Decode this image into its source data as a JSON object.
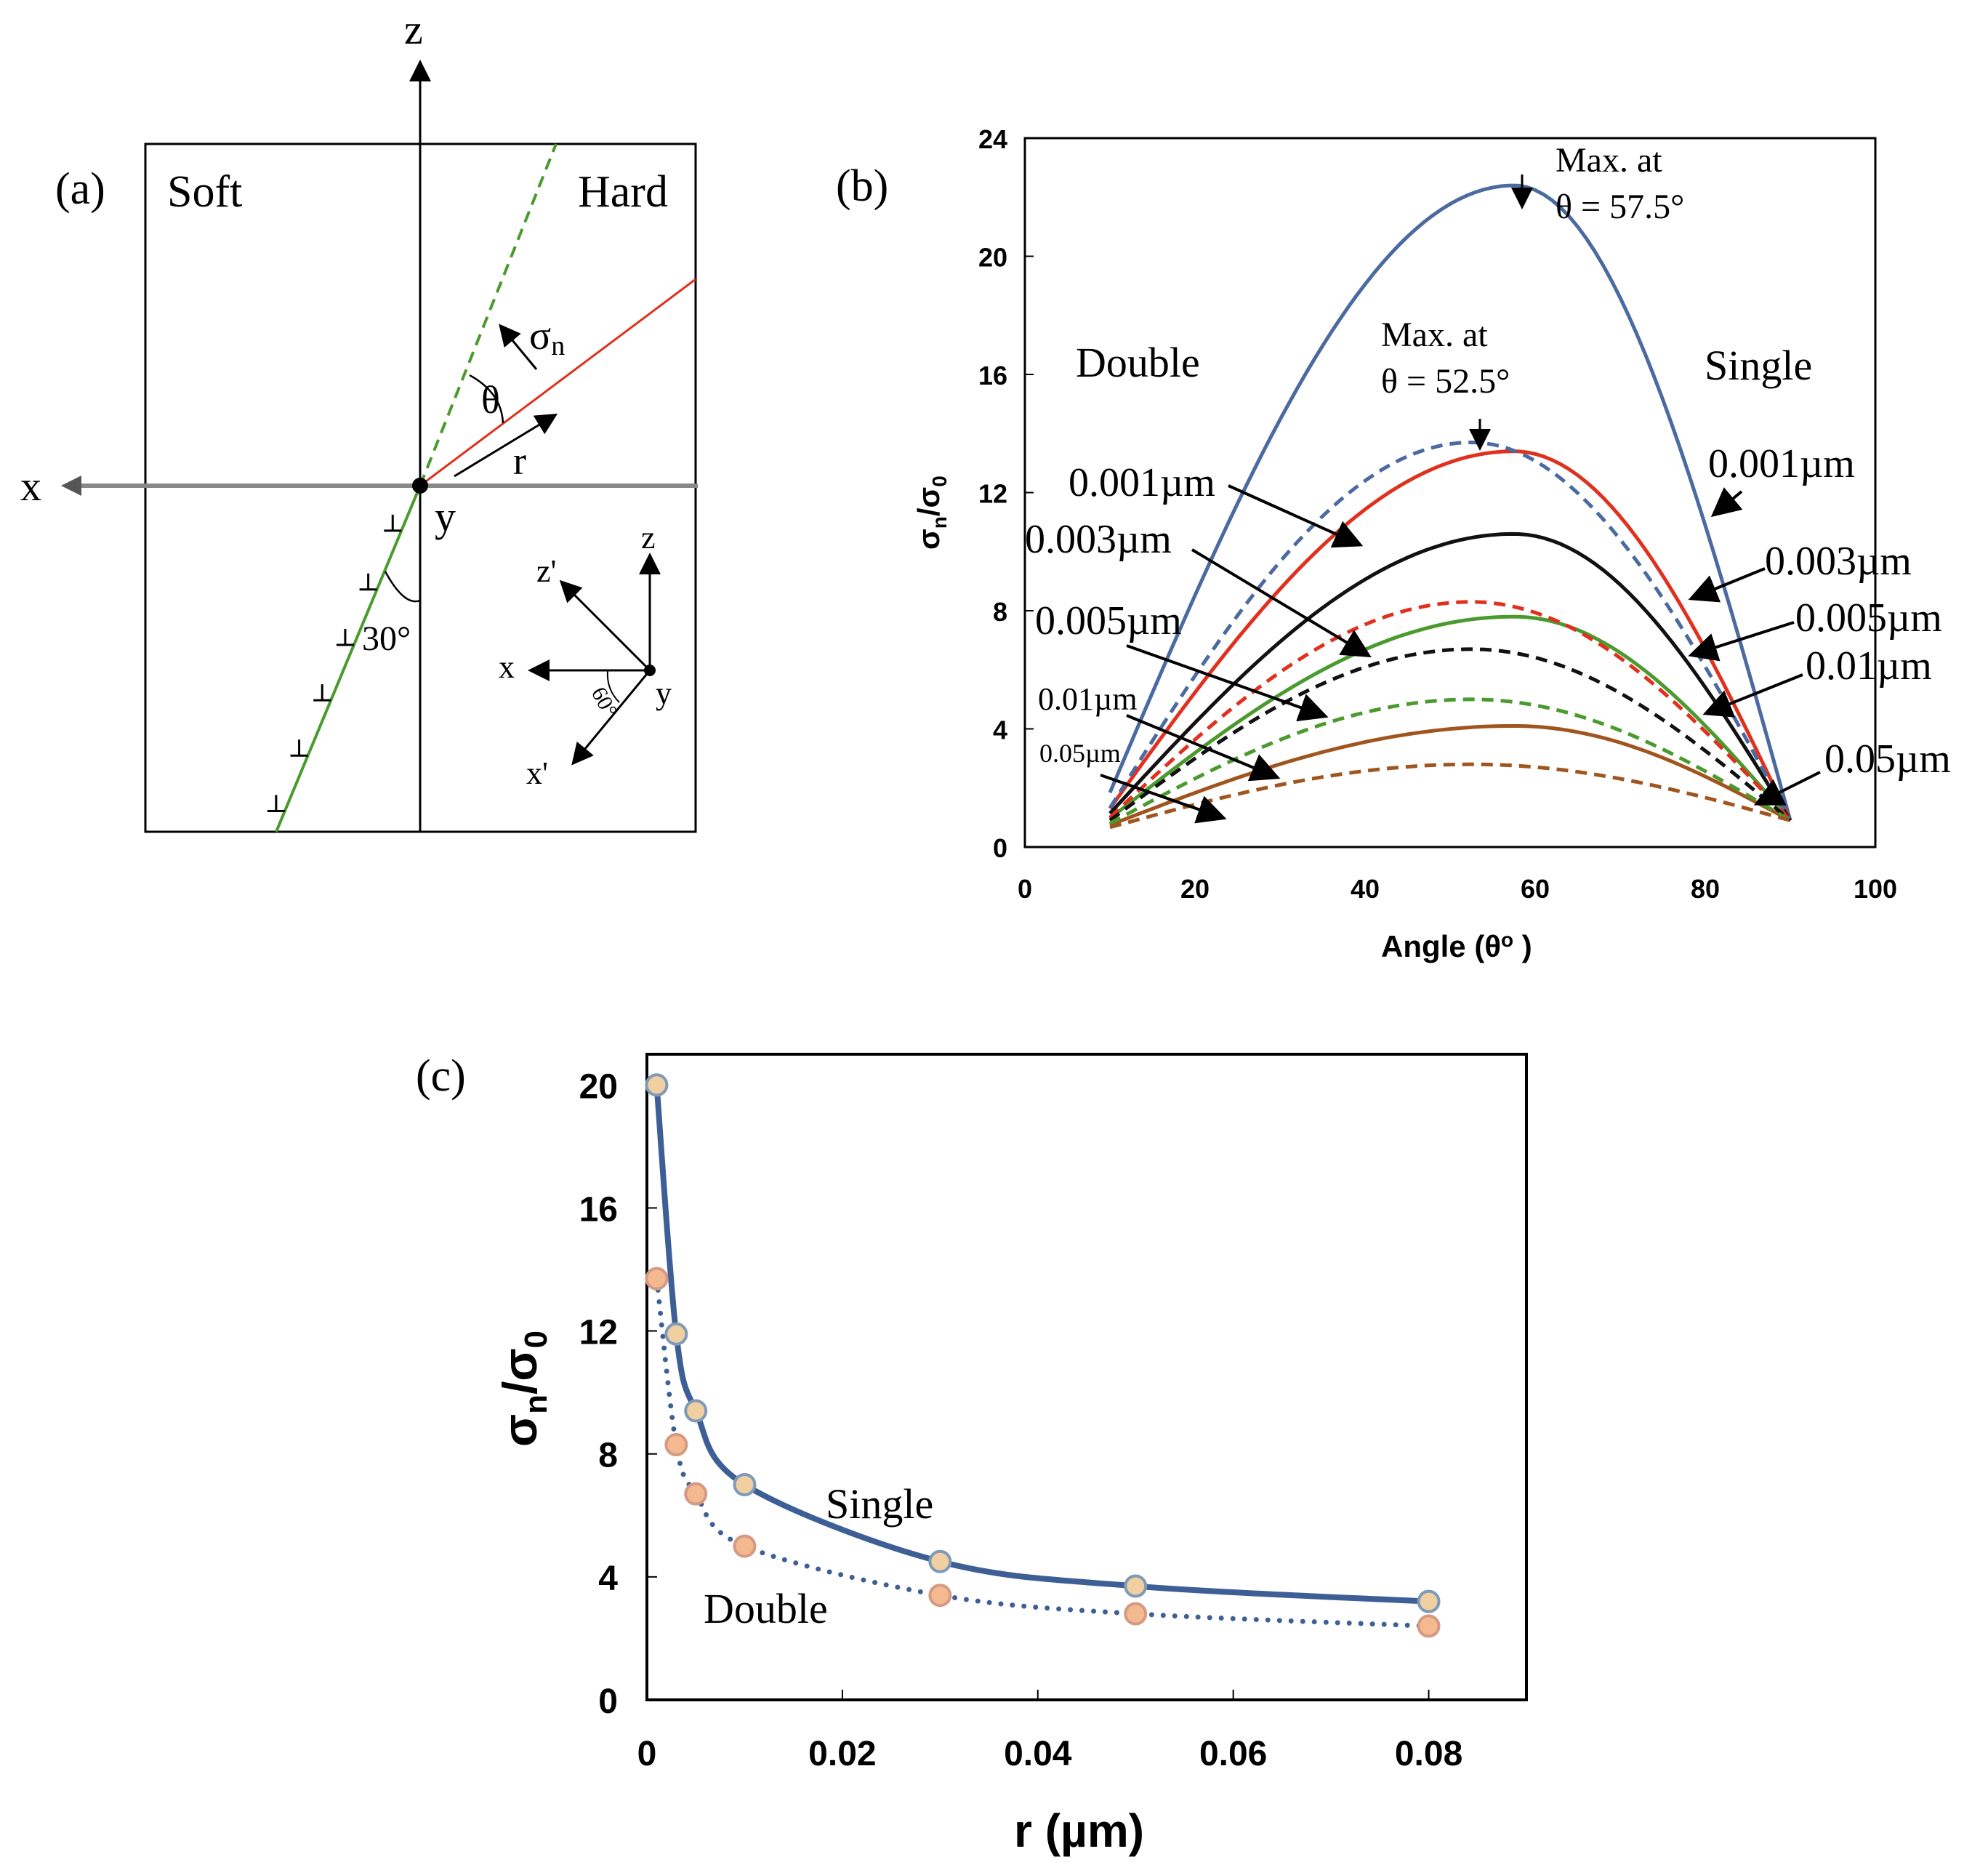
{
  "panel_a": {
    "label": "(a)",
    "soft_label": "Soft",
    "hard_label": "Hard",
    "axis_z": "z",
    "axis_x": "x",
    "axis_y": "y",
    "sigma_label": "σ",
    "sigma_sub": "n",
    "theta_label": "θ",
    "r_label": "r",
    "angle_30": "30°",
    "inset": {
      "z": "z",
      "z_prime": "z'",
      "x": "x",
      "x_prime": "x'",
      "y": "y",
      "angle_60": "60°"
    },
    "colors": {
      "green": "#4a9a2e",
      "red": "#e0301e",
      "gray": "#888888"
    }
  },
  "chart_data": [
    {
      "id": "b",
      "type": "line",
      "panel_label": "(b)",
      "xlabel": "Angle (θo )",
      "xlabel_main": "Angle (θ",
      "xlabel_sup": "o",
      "xlabel_close": " )",
      "ylabel_main": "σ",
      "ylabel_sub1": "n",
      "ylabel_slash": "/σ",
      "ylabel_sub2": "0",
      "xlim": [
        0,
        100
      ],
      "ylim": [
        0,
        24
      ],
      "x_ticks": [
        0,
        20,
        40,
        60,
        80,
        100
      ],
      "y_ticks": [
        0,
        4,
        8,
        12,
        16,
        20,
        24
      ],
      "grid": false,
      "x": [
        10,
        15,
        20,
        25,
        30,
        35,
        40,
        45,
        50,
        55,
        60,
        65,
        70,
        75,
        80,
        85,
        90
      ],
      "series": [
        {
          "group": "Single",
          "label": "0.001µm",
          "color": "#4a6aa0",
          "dash": false,
          "peak": 22.4,
          "peak_angle": 57.5
        },
        {
          "group": "Single",
          "label": "0.003µm",
          "color": "#e0301e",
          "dash": false,
          "peak": 13.4,
          "peak_angle": 57.5
        },
        {
          "group": "Single",
          "label": "0.005µm",
          "color": "#111111",
          "dash": false,
          "peak": 10.6,
          "peak_angle": 57.5
        },
        {
          "group": "Single",
          "label": "0.01µm",
          "color": "#4a9a2e",
          "dash": false,
          "peak": 7.8,
          "peak_angle": 57.5
        },
        {
          "group": "Single",
          "label": "0.05µm",
          "color": "#a0551e",
          "dash": false,
          "peak": 4.1,
          "peak_angle": 57.5
        },
        {
          "group": "Double",
          "label": "0.001µm",
          "color": "#4a6aa0",
          "dash": true,
          "peak": 13.7,
          "peak_angle": 52.5
        },
        {
          "group": "Double",
          "label": "0.003µm",
          "color": "#e0301e",
          "dash": true,
          "peak": 8.3,
          "peak_angle": 52.5
        },
        {
          "group": "Double",
          "label": "0.005µm",
          "color": "#111111",
          "dash": true,
          "peak": 6.7,
          "peak_angle": 52.5
        },
        {
          "group": "Double",
          "label": "0.01µm",
          "color": "#4a9a2e",
          "dash": true,
          "peak": 5.0,
          "peak_angle": 52.5
        },
        {
          "group": "Double",
          "label": "0.05µm",
          "color": "#a0551e",
          "dash": true,
          "peak": 2.8,
          "peak_angle": 52.5
        }
      ],
      "annotations": {
        "double": "Double",
        "single": "Single",
        "max_single_1": "Max. at",
        "max_single_2": "θ = 57.5°",
        "max_double_1": "Max. at",
        "max_double_2": "θ = 52.5°"
      }
    },
    {
      "id": "c",
      "type": "scatter",
      "panel_label": "(c)",
      "xlabel": "r (µm)",
      "ylabel_main": "σ",
      "ylabel_sub1": "n",
      "ylabel_slash": "/σ",
      "ylabel_sub2": "0",
      "xlim": [
        0,
        0.09
      ],
      "ylim": [
        0,
        21
      ],
      "x_ticks": [
        "0",
        "0.02",
        "0.04",
        "0.06",
        "0.08"
      ],
      "x_tick_values": [
        0,
        0.02,
        0.04,
        0.06,
        0.08
      ],
      "y_ticks": [
        0,
        4,
        8,
        12,
        16,
        20
      ],
      "grid": false,
      "series": [
        {
          "name": "Single",
          "line": "solid",
          "line_color": "#3e5f96",
          "marker_fill": "#f0cfa0",
          "marker_edge": "#7f9ab8",
          "x": [
            0.001,
            0.003,
            0.005,
            0.01,
            0.03,
            0.05,
            0.08
          ],
          "y": [
            20.0,
            11.9,
            9.4,
            7.0,
            4.5,
            3.7,
            3.2
          ]
        },
        {
          "name": "Double",
          "line": "dotted",
          "line_color": "#3e5f96",
          "marker_fill": "#f5b98f",
          "marker_edge": "#d49a84",
          "x": [
            0.001,
            0.003,
            0.005,
            0.01,
            0.03,
            0.05,
            0.08
          ],
          "y": [
            13.7,
            8.3,
            6.7,
            5.0,
            3.4,
            2.8,
            2.4
          ]
        }
      ]
    }
  ]
}
